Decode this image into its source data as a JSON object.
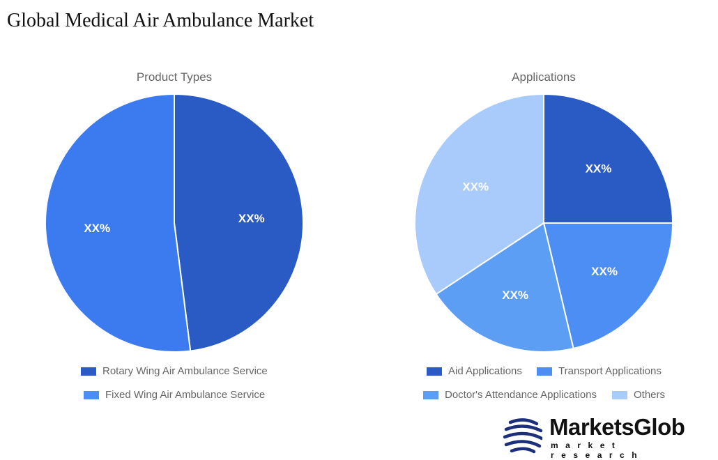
{
  "title": "Global Medical Air Ambulance Market",
  "chart_data": [
    {
      "type": "pie",
      "title": "Product Types",
      "categories": [
        "Rotary Wing Air Ambulance Service",
        "Fixed Wing Air Ambulance Service"
      ],
      "values": [
        48,
        52
      ],
      "data_labels": [
        "XX%",
        "XX%"
      ],
      "colors": [
        "#2a5bc4",
        "#3b7bef"
      ],
      "legend_position": "bottom"
    },
    {
      "type": "pie",
      "title": "Applications",
      "categories": [
        "Aid Applications",
        "Transport Applications",
        "Doctor's Attendance Applications",
        "Others"
      ],
      "values": [
        25,
        21.3,
        19.4,
        34.3
      ],
      "data_labels": [
        "XX%",
        "XX%",
        "XX%",
        "XX%"
      ],
      "colors": [
        "#2a5bc4",
        "#4d8ef5",
        "#5d9ef5",
        "#a8cbfb"
      ],
      "legend_position": "bottom"
    }
  ],
  "logo": {
    "name": "MarketsGlob",
    "tagline": "market research"
  }
}
